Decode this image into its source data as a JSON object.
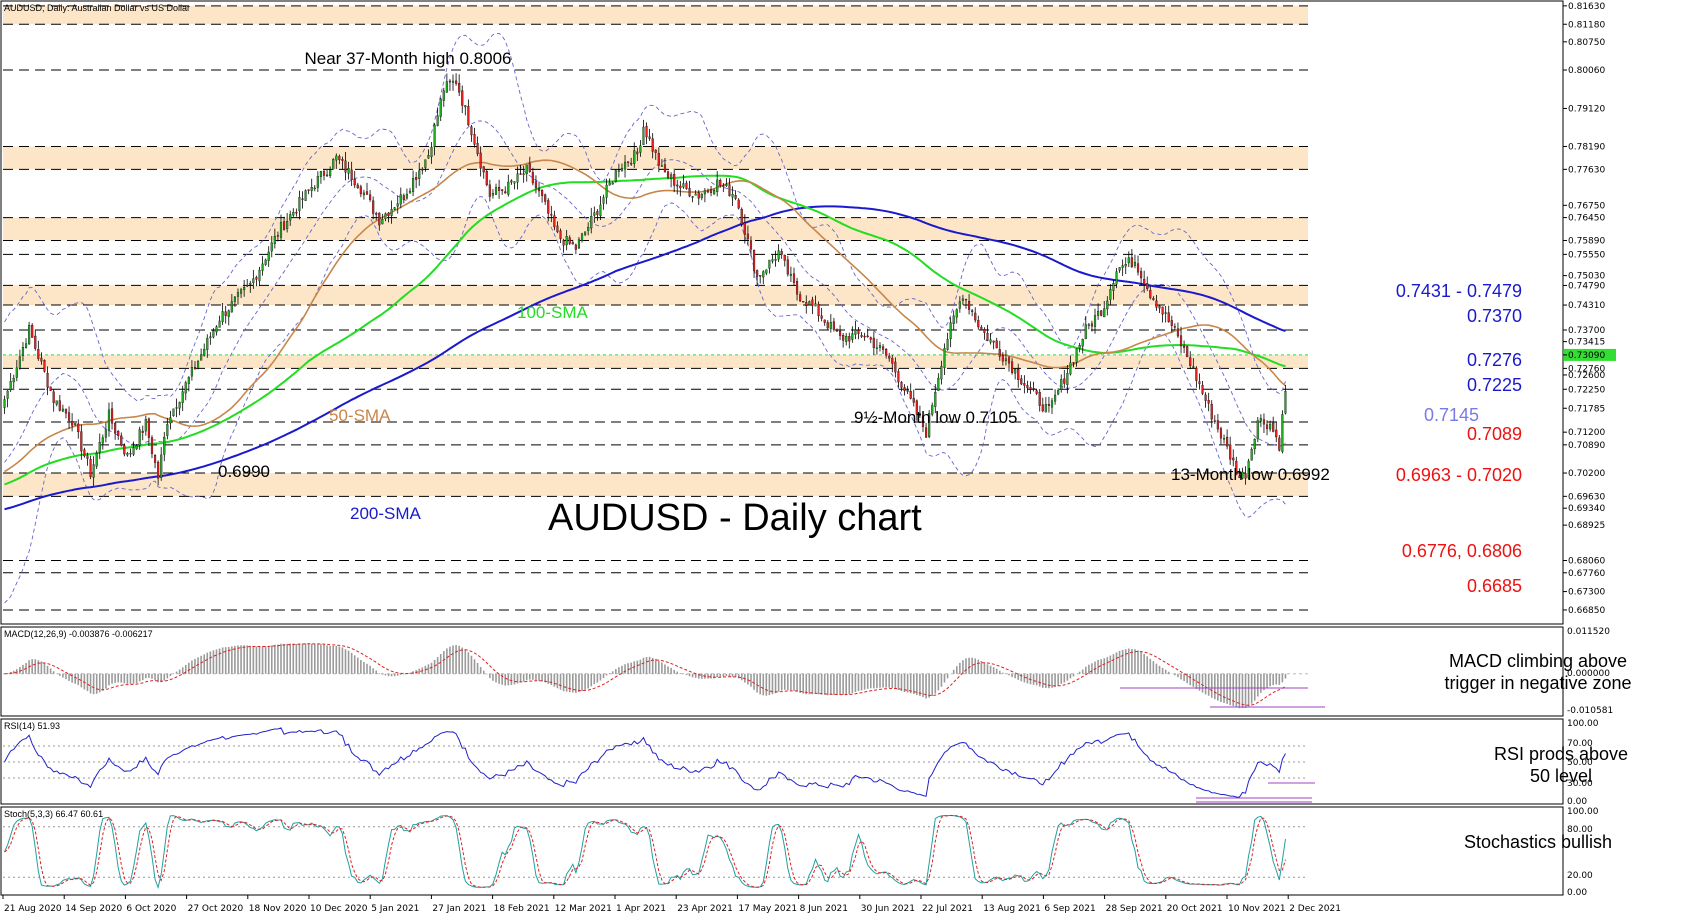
{
  "main_header": "AUDUSD, Daily:  Australian Dollar vs US Dollar",
  "chart_title": "AUDUSD - Daily chart",
  "colors": {
    "support_resistance_band": "#fde6c8",
    "sma50": "#c8864a",
    "sma100": "#22dd22",
    "sma200": "#1a1acc",
    "bollinger": "#6666cc",
    "bull_candle": "#22aa22",
    "bear_candle": "#dd2222",
    "level_blue": "#1a1acc",
    "level_red": "#ee1111",
    "level_lavender": "#7a7ae6",
    "macd_hist": "#9a9a9a",
    "macd_signal": "#dd2222",
    "rsi_line": "#2222cc",
    "stoch_k": "#22a0a0",
    "stoch_d": "#dd2222",
    "current_price_tag": "#33dd33"
  },
  "price_axis_labels": [
    "0.81630",
    "0.81180",
    "0.80750",
    "0.80060",
    "0.79120",
    "0.78190",
    "0.77630",
    "0.76750",
    "0.76450",
    "0.75890",
    "0.75550",
    "0.75030",
    "0.74790",
    "0.74310",
    "0.73700",
    "0.73415",
    "0.73090",
    "0.72760",
    "0.72600",
    "0.72250",
    "0.71785",
    "0.71200",
    "0.70890",
    "0.70200",
    "0.69630",
    "0.69340",
    "0.68925",
    "0.68060",
    "0.67760",
    "0.67300",
    "0.66850"
  ],
  "current_price": "0.73090",
  "annotations": {
    "near_high": "Near 37-Month high 0.8006",
    "low_0990": "0.6990",
    "low_9half": "9½-Month low 0.7105",
    "low_13month": "13-Month low 0.6992",
    "sma50": "50-SMA",
    "sma100": "100-SMA",
    "sma200": "200-SMA"
  },
  "level_labels": {
    "l7431": "0.7431 - 0.7479",
    "l7370": "0.7370",
    "l7276": "0.7276",
    "l7225": "0.7225",
    "l7145": "0.7145",
    "l7089": "0.7089",
    "l6963": "0.6963 - 0.7020",
    "l6776": "0.6776, 0.6806",
    "l6685": "0.6685"
  },
  "macd": {
    "header": "MACD(12,26,9) -0.003876 -0.006217",
    "axis": [
      "0.011520",
      "0.000000",
      "-0.010581"
    ],
    "comment_line1": "MACD climbing above",
    "comment_line2": "trigger in negative zone"
  },
  "rsi": {
    "header": "RSI(14) 51.93",
    "axis": [
      "100.00",
      "70.00",
      "50.00",
      "30.00",
      "0.00"
    ],
    "comment_line1": "RSI prods above",
    "comment_line2": "50 level"
  },
  "stoch": {
    "header": "Stoch(5,3,3) 66.47 60.61",
    "axis": [
      "100.00",
      "80.00",
      "20.00",
      "0.00"
    ],
    "comment": "Stochastics bullish"
  },
  "chart_data": {
    "type": "candlestick",
    "symbol": "AUDUSD",
    "timeframe": "Daily",
    "x_labels": [
      "21 Aug 2020",
      "14 Sep 2020",
      "6 Oct 2020",
      "27 Oct 2020",
      "18 Nov 2020",
      "10 Dec 2020",
      "5 Jan 2021",
      "27 Jan 2021",
      "18 Feb 2021",
      "12 Mar 2021",
      "1 Apr 2021",
      "23 Apr 2021",
      "17 May 2021",
      "8 Jun 2021",
      "30 Jun 2021",
      "22 Jul 2021",
      "13 Aug 2021",
      "6 Sep 2021",
      "28 Sep 2021",
      "20 Oct 2021",
      "10 Nov 2021",
      "2 Dec 2021"
    ],
    "ylim": [
      0.6658,
      0.817
    ],
    "anchor_closes": [
      [
        0,
        0.72
      ],
      [
        8,
        0.737
      ],
      [
        16,
        0.72
      ],
      [
        22,
        0.715
      ],
      [
        28,
        0.702
      ],
      [
        34,
        0.716
      ],
      [
        40,
        0.706
      ],
      [
        46,
        0.714
      ],
      [
        50,
        0.701
      ],
      [
        53,
        0.715
      ],
      [
        60,
        0.725
      ],
      [
        70,
        0.74
      ],
      [
        80,
        0.748
      ],
      [
        90,
        0.762
      ],
      [
        100,
        0.772
      ],
      [
        108,
        0.779
      ],
      [
        115,
        0.773
      ],
      [
        122,
        0.764
      ],
      [
        130,
        0.77
      ],
      [
        138,
        0.78
      ],
      [
        143,
        0.796
      ],
      [
        147,
        0.798
      ],
      [
        152,
        0.786
      ],
      [
        158,
        0.77
      ],
      [
        164,
        0.772
      ],
      [
        170,
        0.776
      ],
      [
        175,
        0.769
      ],
      [
        180,
        0.76
      ],
      [
        186,
        0.757
      ],
      [
        192,
        0.765
      ],
      [
        200,
        0.777
      ],
      [
        206,
        0.78
      ],
      [
        208,
        0.787
      ],
      [
        214,
        0.776
      ],
      [
        220,
        0.772
      ],
      [
        226,
        0.77
      ],
      [
        232,
        0.773
      ],
      [
        238,
        0.77
      ],
      [
        245,
        0.75
      ],
      [
        252,
        0.756
      ],
      [
        258,
        0.746
      ],
      [
        264,
        0.742
      ],
      [
        272,
        0.735
      ],
      [
        280,
        0.736
      ],
      [
        288,
        0.73
      ],
      [
        296,
        0.718
      ],
      [
        300,
        0.712
      ],
      [
        306,
        0.733
      ],
      [
        312,
        0.746
      ],
      [
        318,
        0.737
      ],
      [
        326,
        0.73
      ],
      [
        334,
        0.722
      ],
      [
        340,
        0.717
      ],
      [
        346,
        0.727
      ],
      [
        352,
        0.737
      ],
      [
        358,
        0.743
      ],
      [
        362,
        0.752
      ],
      [
        368,
        0.754
      ],
      [
        373,
        0.746
      ],
      [
        380,
        0.738
      ],
      [
        386,
        0.729
      ],
      [
        392,
        0.718
      ],
      [
        398,
        0.708
      ],
      [
        402,
        0.701
      ],
      [
        404,
        0.702
      ],
      [
        408,
        0.715
      ],
      [
        412,
        0.714
      ],
      [
        415,
        0.709
      ],
      [
        417,
        0.722
      ]
    ],
    "levels": [
      0.8163,
      0.8118,
      0.8006,
      0.7819,
      0.7763,
      0.7645,
      0.7589,
      0.7555,
      0.7479,
      0.7431,
      0.737,
      0.7309,
      0.7276,
      0.7225,
      0.7145,
      0.7089,
      0.702,
      0.6963,
      0.6806,
      0.6776,
      0.6685
    ],
    "zones": [
      [
        0.8118,
        0.8163
      ],
      [
        0.7763,
        0.7819
      ],
      [
        0.7589,
        0.7645
      ],
      [
        0.7431,
        0.7479
      ],
      [
        0.7276,
        0.7309
      ],
      [
        0.6963,
        0.702
      ]
    ],
    "series": [
      {
        "name": "50-SMA"
      },
      {
        "name": "100-SMA"
      },
      {
        "name": "200-SMA"
      }
    ],
    "macd_range": [
      -0.010581,
      0.01152
    ],
    "rsi_range": [
      0,
      100
    ],
    "stoch_range": [
      0,
      100
    ]
  }
}
